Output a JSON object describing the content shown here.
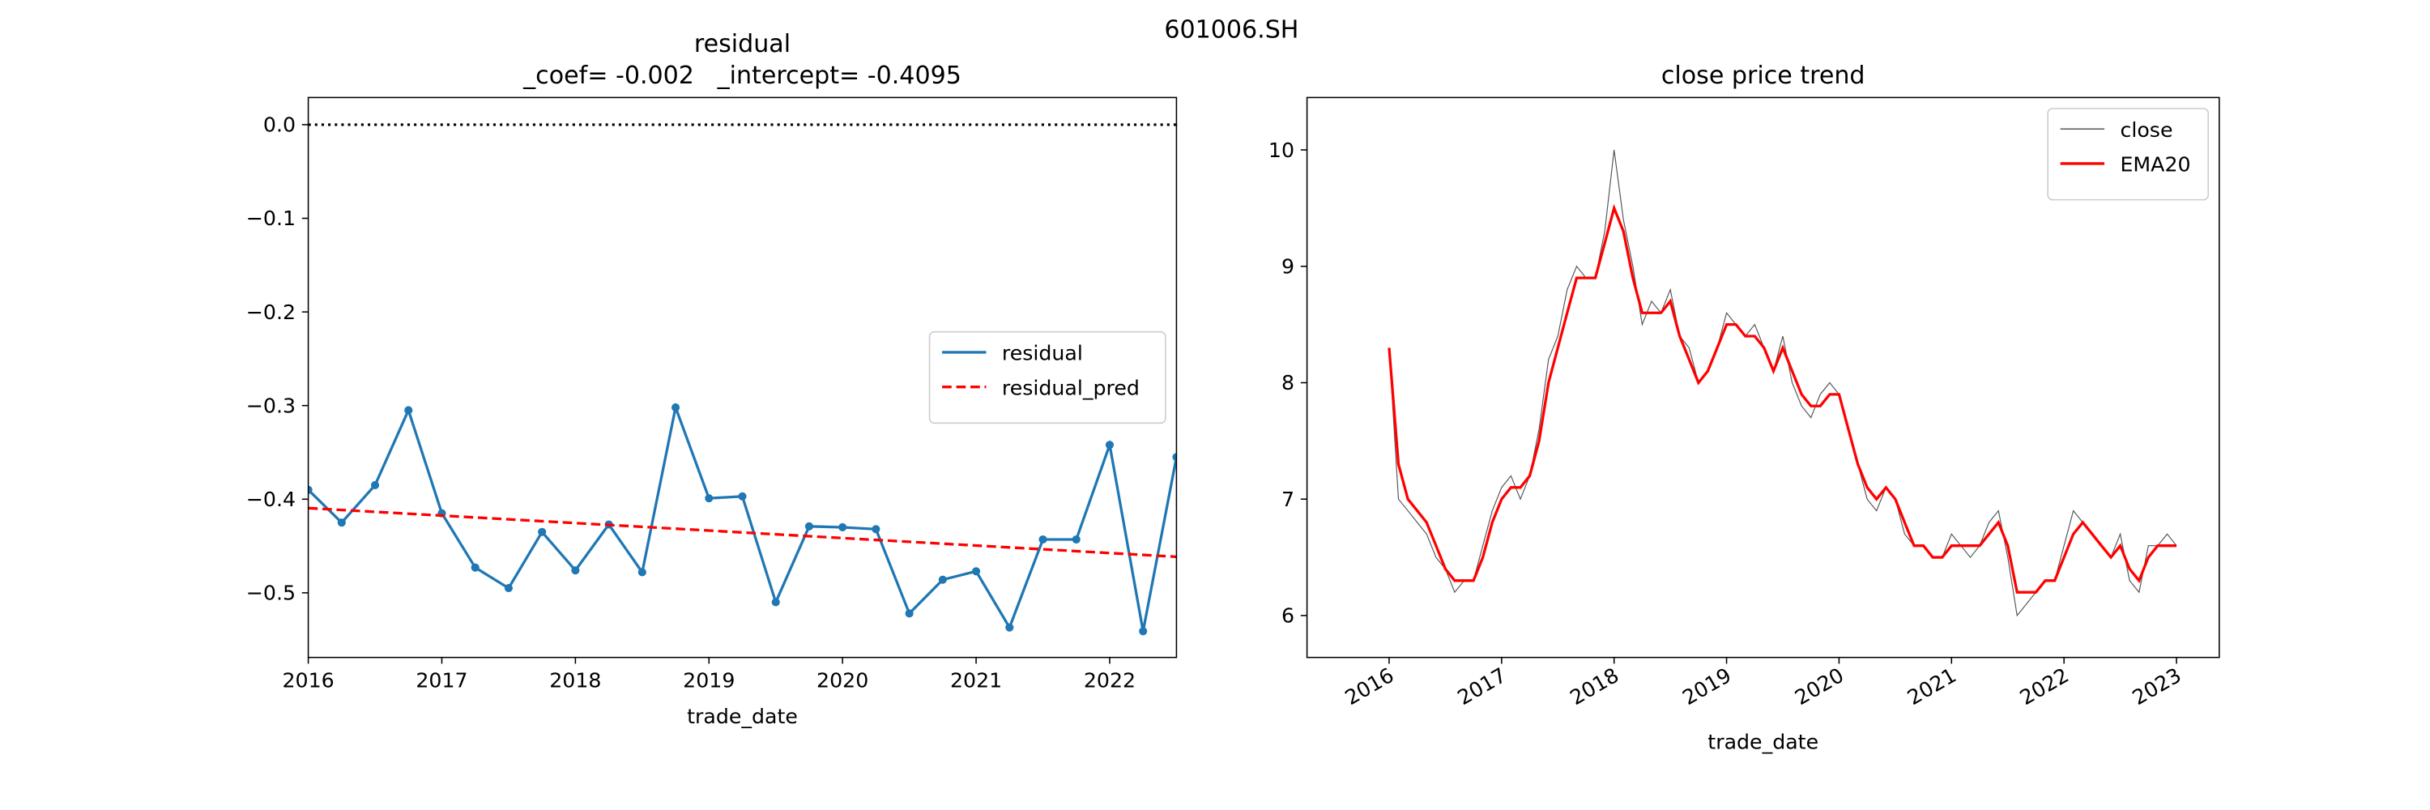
{
  "title": "601006.SH",
  "chart_data": [
    {
      "type": "line",
      "title": "residual",
      "subtitle": "_coef= -0.002   _intercept= -0.4095",
      "xlabel": "trade_date",
      "x": [
        2016,
        2016.25,
        2016.5,
        2016.75,
        2017,
        2017.25,
        2017.5,
        2017.75,
        2018,
        2018.25,
        2018.5,
        2018.75,
        2019,
        2019.25,
        2019.5,
        2019.75,
        2020,
        2020.25,
        2020.5,
        2020.75,
        2021,
        2021.25,
        2021.5,
        2021.75,
        2022,
        2022.25,
        2022.5
      ],
      "series": [
        {
          "name": "residual",
          "color": "#1f77b4",
          "linestyle": "solid",
          "markers": true,
          "values": [
            -0.39,
            -0.425,
            -0.385,
            -0.305,
            -0.415,
            -0.473,
            -0.495,
            -0.435,
            -0.476,
            -0.427,
            -0.478,
            -0.302,
            -0.399,
            -0.397,
            -0.51,
            -0.429,
            -0.43,
            -0.432,
            -0.522,
            -0.486,
            -0.477,
            -0.537,
            -0.443,
            -0.443,
            -0.342,
            -0.541,
            -0.355
          ]
        },
        {
          "name": "residual_pred",
          "color": "#ff0000",
          "linestyle": "dashed",
          "markers": false,
          "values": [
            -0.4095,
            -0.4115,
            -0.4135,
            -0.4155,
            -0.4175,
            -0.4195,
            -0.4215,
            -0.4235,
            -0.4255,
            -0.4275,
            -0.4295,
            -0.4315,
            -0.4335,
            -0.4355,
            -0.4375,
            -0.4395,
            -0.4415,
            -0.4435,
            -0.4455,
            -0.4475,
            -0.4495,
            -0.4515,
            -0.4535,
            -0.4555,
            -0.4575,
            -0.4595,
            -0.4615
          ]
        }
      ],
      "hline": 0,
      "xlim": [
        2016,
        2022.5
      ],
      "xticks": [
        2016,
        2017,
        2018,
        2019,
        2020,
        2021,
        2022
      ],
      "ylim": [
        -0.569,
        0.029
      ],
      "yticks": [
        {
          "value": 0,
          "label": "0.0"
        },
        {
          "value": -0.1,
          "label": "−0.1"
        },
        {
          "value": -0.2,
          "label": "−0.2"
        },
        {
          "value": -0.3,
          "label": "−0.3"
        },
        {
          "value": -0.4,
          "label": "−0.4"
        },
        {
          "value": -0.5,
          "label": "−0.5"
        }
      ],
      "legend": "center right",
      "xtick_rotation": 0
    },
    {
      "type": "line",
      "title": "close price trend",
      "xlabel": "trade_date",
      "x": [
        2016,
        2016.083,
        2016.167,
        2016.25,
        2016.333,
        2016.417,
        2016.5,
        2016.583,
        2016.667,
        2016.75,
        2016.833,
        2016.917,
        2017,
        2017.083,
        2017.167,
        2017.25,
        2017.333,
        2017.417,
        2017.5,
        2017.583,
        2017.667,
        2017.75,
        2017.833,
        2017.917,
        2018,
        2018.083,
        2018.167,
        2018.25,
        2018.333,
        2018.417,
        2018.5,
        2018.583,
        2018.667,
        2018.75,
        2018.833,
        2018.917,
        2019,
        2019.083,
        2019.167,
        2019.25,
        2019.333,
        2019.417,
        2019.5,
        2019.583,
        2019.667,
        2019.75,
        2019.833,
        2019.917,
        2020,
        2020.083,
        2020.167,
        2020.25,
        2020.333,
        2020.417,
        2020.5,
        2020.583,
        2020.667,
        2020.75,
        2020.833,
        2020.917,
        2021,
        2021.083,
        2021.167,
        2021.25,
        2021.333,
        2021.417,
        2021.5,
        2021.583,
        2021.667,
        2021.75,
        2021.833,
        2021.917,
        2022,
        2022.083,
        2022.167,
        2022.25,
        2022.333,
        2022.417,
        2022.5,
        2022.583,
        2022.667,
        2022.75,
        2022.833,
        2022.917,
        2023
      ],
      "series": [
        {
          "name": "close",
          "color": "#555555",
          "linestyle": "thin",
          "markers": false,
          "values": [
            8.3,
            7.0,
            6.9,
            6.8,
            6.7,
            6.5,
            6.4,
            6.2,
            6.3,
            6.3,
            6.6,
            6.9,
            7.1,
            7.2,
            7.0,
            7.2,
            7.6,
            8.2,
            8.4,
            8.8,
            9.0,
            8.9,
            8.9,
            9.3,
            10.0,
            9.4,
            9.0,
            8.5,
            8.7,
            8.6,
            8.8,
            8.4,
            8.3,
            8.0,
            8.1,
            8.3,
            8.6,
            8.5,
            8.4,
            8.5,
            8.3,
            8.1,
            8.4,
            8.0,
            7.8,
            7.7,
            7.9,
            8.0,
            7.9,
            7.6,
            7.3,
            7.0,
            6.9,
            7.1,
            7.0,
            6.7,
            6.6,
            6.6,
            6.5,
            6.5,
            6.7,
            6.6,
            6.5,
            6.6,
            6.8,
            6.9,
            6.5,
            6.0,
            6.1,
            6.2,
            6.3,
            6.3,
            6.6,
            6.9,
            6.8,
            6.7,
            6.6,
            6.5,
            6.7,
            6.3,
            6.2,
            6.6,
            6.6,
            6.7,
            6.6
          ]
        },
        {
          "name": "EMA20",
          "color": "#ff0000",
          "linestyle": "solid",
          "markers": false,
          "values": [
            8.3,
            7.3,
            7.0,
            6.9,
            6.8,
            6.6,
            6.4,
            6.3,
            6.3,
            6.3,
            6.5,
            6.8,
            7.0,
            7.1,
            7.1,
            7.2,
            7.5,
            8.0,
            8.3,
            8.6,
            8.9,
            8.9,
            8.9,
            9.2,
            9.5,
            9.3,
            8.9,
            8.6,
            8.6,
            8.6,
            8.7,
            8.4,
            8.2,
            8.0,
            8.1,
            8.3,
            8.5,
            8.5,
            8.4,
            8.4,
            8.3,
            8.1,
            8.3,
            8.1,
            7.9,
            7.8,
            7.8,
            7.9,
            7.9,
            7.6,
            7.3,
            7.1,
            7.0,
            7.1,
            7.0,
            6.8,
            6.6,
            6.6,
            6.5,
            6.5,
            6.6,
            6.6,
            6.6,
            6.6,
            6.7,
            6.8,
            6.6,
            6.2,
            6.2,
            6.2,
            6.3,
            6.3,
            6.5,
            6.7,
            6.8,
            6.7,
            6.6,
            6.5,
            6.6,
            6.4,
            6.3,
            6.5,
            6.6,
            6.6,
            6.6
          ]
        }
      ],
      "xlim": [
        2015.27,
        2023.38
      ],
      "xticks": [
        2016,
        2017,
        2018,
        2019,
        2020,
        2021,
        2022,
        2023
      ],
      "ylim": [
        5.64,
        10.45
      ],
      "yticks": [
        6,
        7,
        8,
        9,
        10
      ],
      "legend": "upper right",
      "xtick_rotation": 30
    }
  ]
}
